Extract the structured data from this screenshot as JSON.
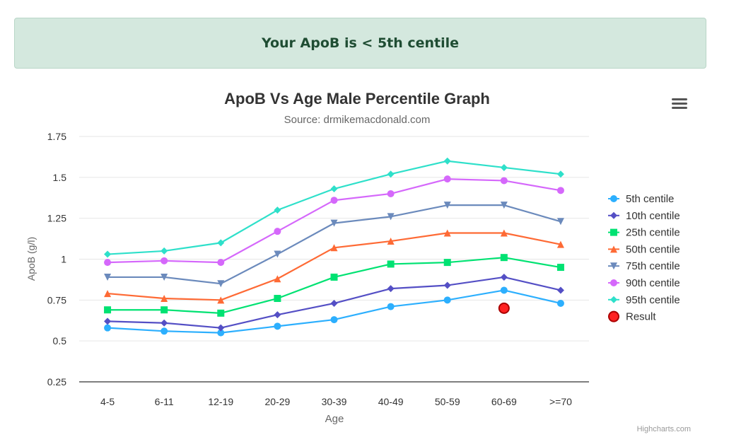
{
  "banner": {
    "text": "Your ApoB is < 5th centile"
  },
  "menu": {
    "icon": "hamburger-menu-icon"
  },
  "credits": "Highcharts.com",
  "chart_data": {
    "type": "line",
    "title": "ApoB Vs Age Male Percentile Graph",
    "subtitle": "Source: drmikemacdonald.com",
    "xlabel": "Age",
    "ylabel": "ApoB (g/l)",
    "categories": [
      "4-5",
      "6-11",
      "12-19",
      "20-29",
      "30-39",
      "40-49",
      "50-59",
      "60-69",
      ">=70"
    ],
    "ylim": [
      0.25,
      1.75
    ],
    "yticks": [
      0.25,
      0.5,
      0.75,
      1,
      1.25,
      1.5,
      1.75
    ],
    "ytick_labels": [
      "0.25",
      "0.5",
      "0.75",
      "1",
      "1.25",
      "1.5",
      "1.75"
    ],
    "grid": true,
    "legend": "right",
    "series": [
      {
        "name": "5th centile",
        "color": "#2caffe",
        "marker": "circle",
        "values": [
          0.58,
          0.56,
          0.55,
          0.59,
          0.63,
          0.71,
          0.75,
          0.81,
          0.73
        ]
      },
      {
        "name": "10th centile",
        "color": "#544fc5",
        "marker": "diamond",
        "values": [
          0.62,
          0.61,
          0.58,
          0.66,
          0.73,
          0.82,
          0.84,
          0.89,
          0.81
        ]
      },
      {
        "name": "25th centile",
        "color": "#00e272",
        "marker": "square",
        "values": [
          0.69,
          0.69,
          0.67,
          0.76,
          0.89,
          0.97,
          0.98,
          1.01,
          0.95
        ]
      },
      {
        "name": "50th centile",
        "color": "#fe6a35",
        "marker": "triangle",
        "values": [
          0.79,
          0.76,
          0.75,
          0.88,
          1.07,
          1.11,
          1.16,
          1.16,
          1.09
        ]
      },
      {
        "name": "75th centile",
        "color": "#6b8abc",
        "marker": "triangle-down",
        "values": [
          0.89,
          0.89,
          0.85,
          1.03,
          1.22,
          1.26,
          1.33,
          1.33,
          1.23
        ]
      },
      {
        "name": "90th centile",
        "color": "#d568fb",
        "marker": "circle",
        "values": [
          0.98,
          0.99,
          0.98,
          1.17,
          1.36,
          1.4,
          1.49,
          1.48,
          1.42
        ]
      },
      {
        "name": "95th centile",
        "color": "#2ee0ca",
        "marker": "diamond",
        "values": [
          1.03,
          1.05,
          1.1,
          1.3,
          1.43,
          1.52,
          1.6,
          1.56,
          1.52
        ]
      }
    ],
    "result": {
      "name": "Result",
      "category": "60-69",
      "value": 0.7,
      "color": "#ff2222",
      "border": "#aa0000"
    }
  }
}
